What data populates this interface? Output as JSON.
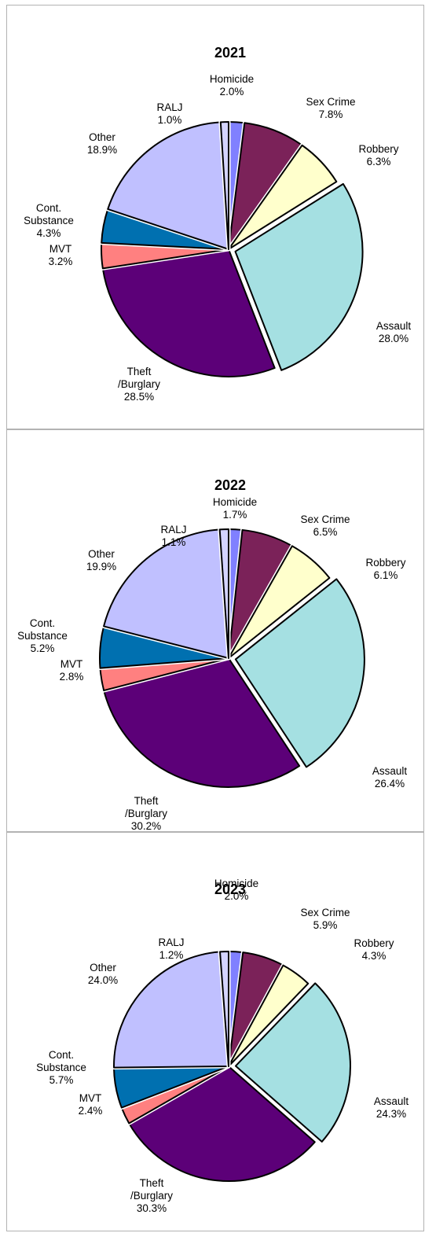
{
  "chart_data": [
    {
      "type": "pie",
      "title": "2021",
      "categories": [
        "Homicide",
        "Sex Crime",
        "Robbery",
        "Assault",
        "Theft\n/Burglary",
        "MVT",
        "Cont.\nSubstance",
        "Other",
        "RALJ"
      ],
      "values": [
        2.0,
        7.8,
        6.3,
        28.0,
        28.5,
        3.2,
        4.3,
        18.9,
        1.0
      ],
      "labels": [
        "2.0%",
        "7.8%",
        "6.3%",
        "28.0%",
        "28.5%",
        "3.2%",
        "4.3%",
        "18.9%",
        "1.0%"
      ],
      "exploded": [
        false,
        false,
        false,
        true,
        false,
        false,
        false,
        false,
        false
      ]
    },
    {
      "type": "pie",
      "title": "2022",
      "categories": [
        "Homicide",
        "Sex Crime",
        "Robbery",
        "Assault",
        "Theft\n/Burglary",
        "MVT",
        "Cont.\nSubstance",
        "Other",
        "RALJ"
      ],
      "values": [
        1.7,
        6.5,
        6.1,
        26.4,
        30.2,
        2.8,
        5.2,
        19.9,
        1.1
      ],
      "labels": [
        "1.7%",
        "6.5%",
        "6.1%",
        "26.4%",
        "30.2%",
        "2.8%",
        "5.2%",
        "19.9%",
        "1.1%"
      ],
      "exploded": [
        false,
        false,
        false,
        true,
        false,
        false,
        false,
        false,
        false
      ]
    },
    {
      "type": "pie",
      "title": "2023",
      "categories": [
        "Homicide",
        "Sex Crime",
        "Robbery",
        "Assault",
        "Theft\n/Burglary",
        "MVT",
        "Cont.\nSubstance",
        "Other",
        "RALJ"
      ],
      "values": [
        2.0,
        5.9,
        4.3,
        24.3,
        30.3,
        2.4,
        5.7,
        24.0,
        1.2
      ],
      "labels": [
        "2.0%",
        "5.9%",
        "4.3%",
        "24.3%",
        "30.3%",
        "2.4%",
        "5.7%",
        "24.0%",
        "1.2%"
      ],
      "exploded": [
        false,
        false,
        false,
        true,
        false,
        false,
        false,
        false,
        false
      ]
    }
  ],
  "colors": [
    "#8080ff",
    "#7b2259",
    "#ffffcc",
    "#a5e0e2",
    "#5c0078",
    "#ff8080",
    "#0070b0",
    "#c0c0ff",
    "#d4d4ff"
  ]
}
